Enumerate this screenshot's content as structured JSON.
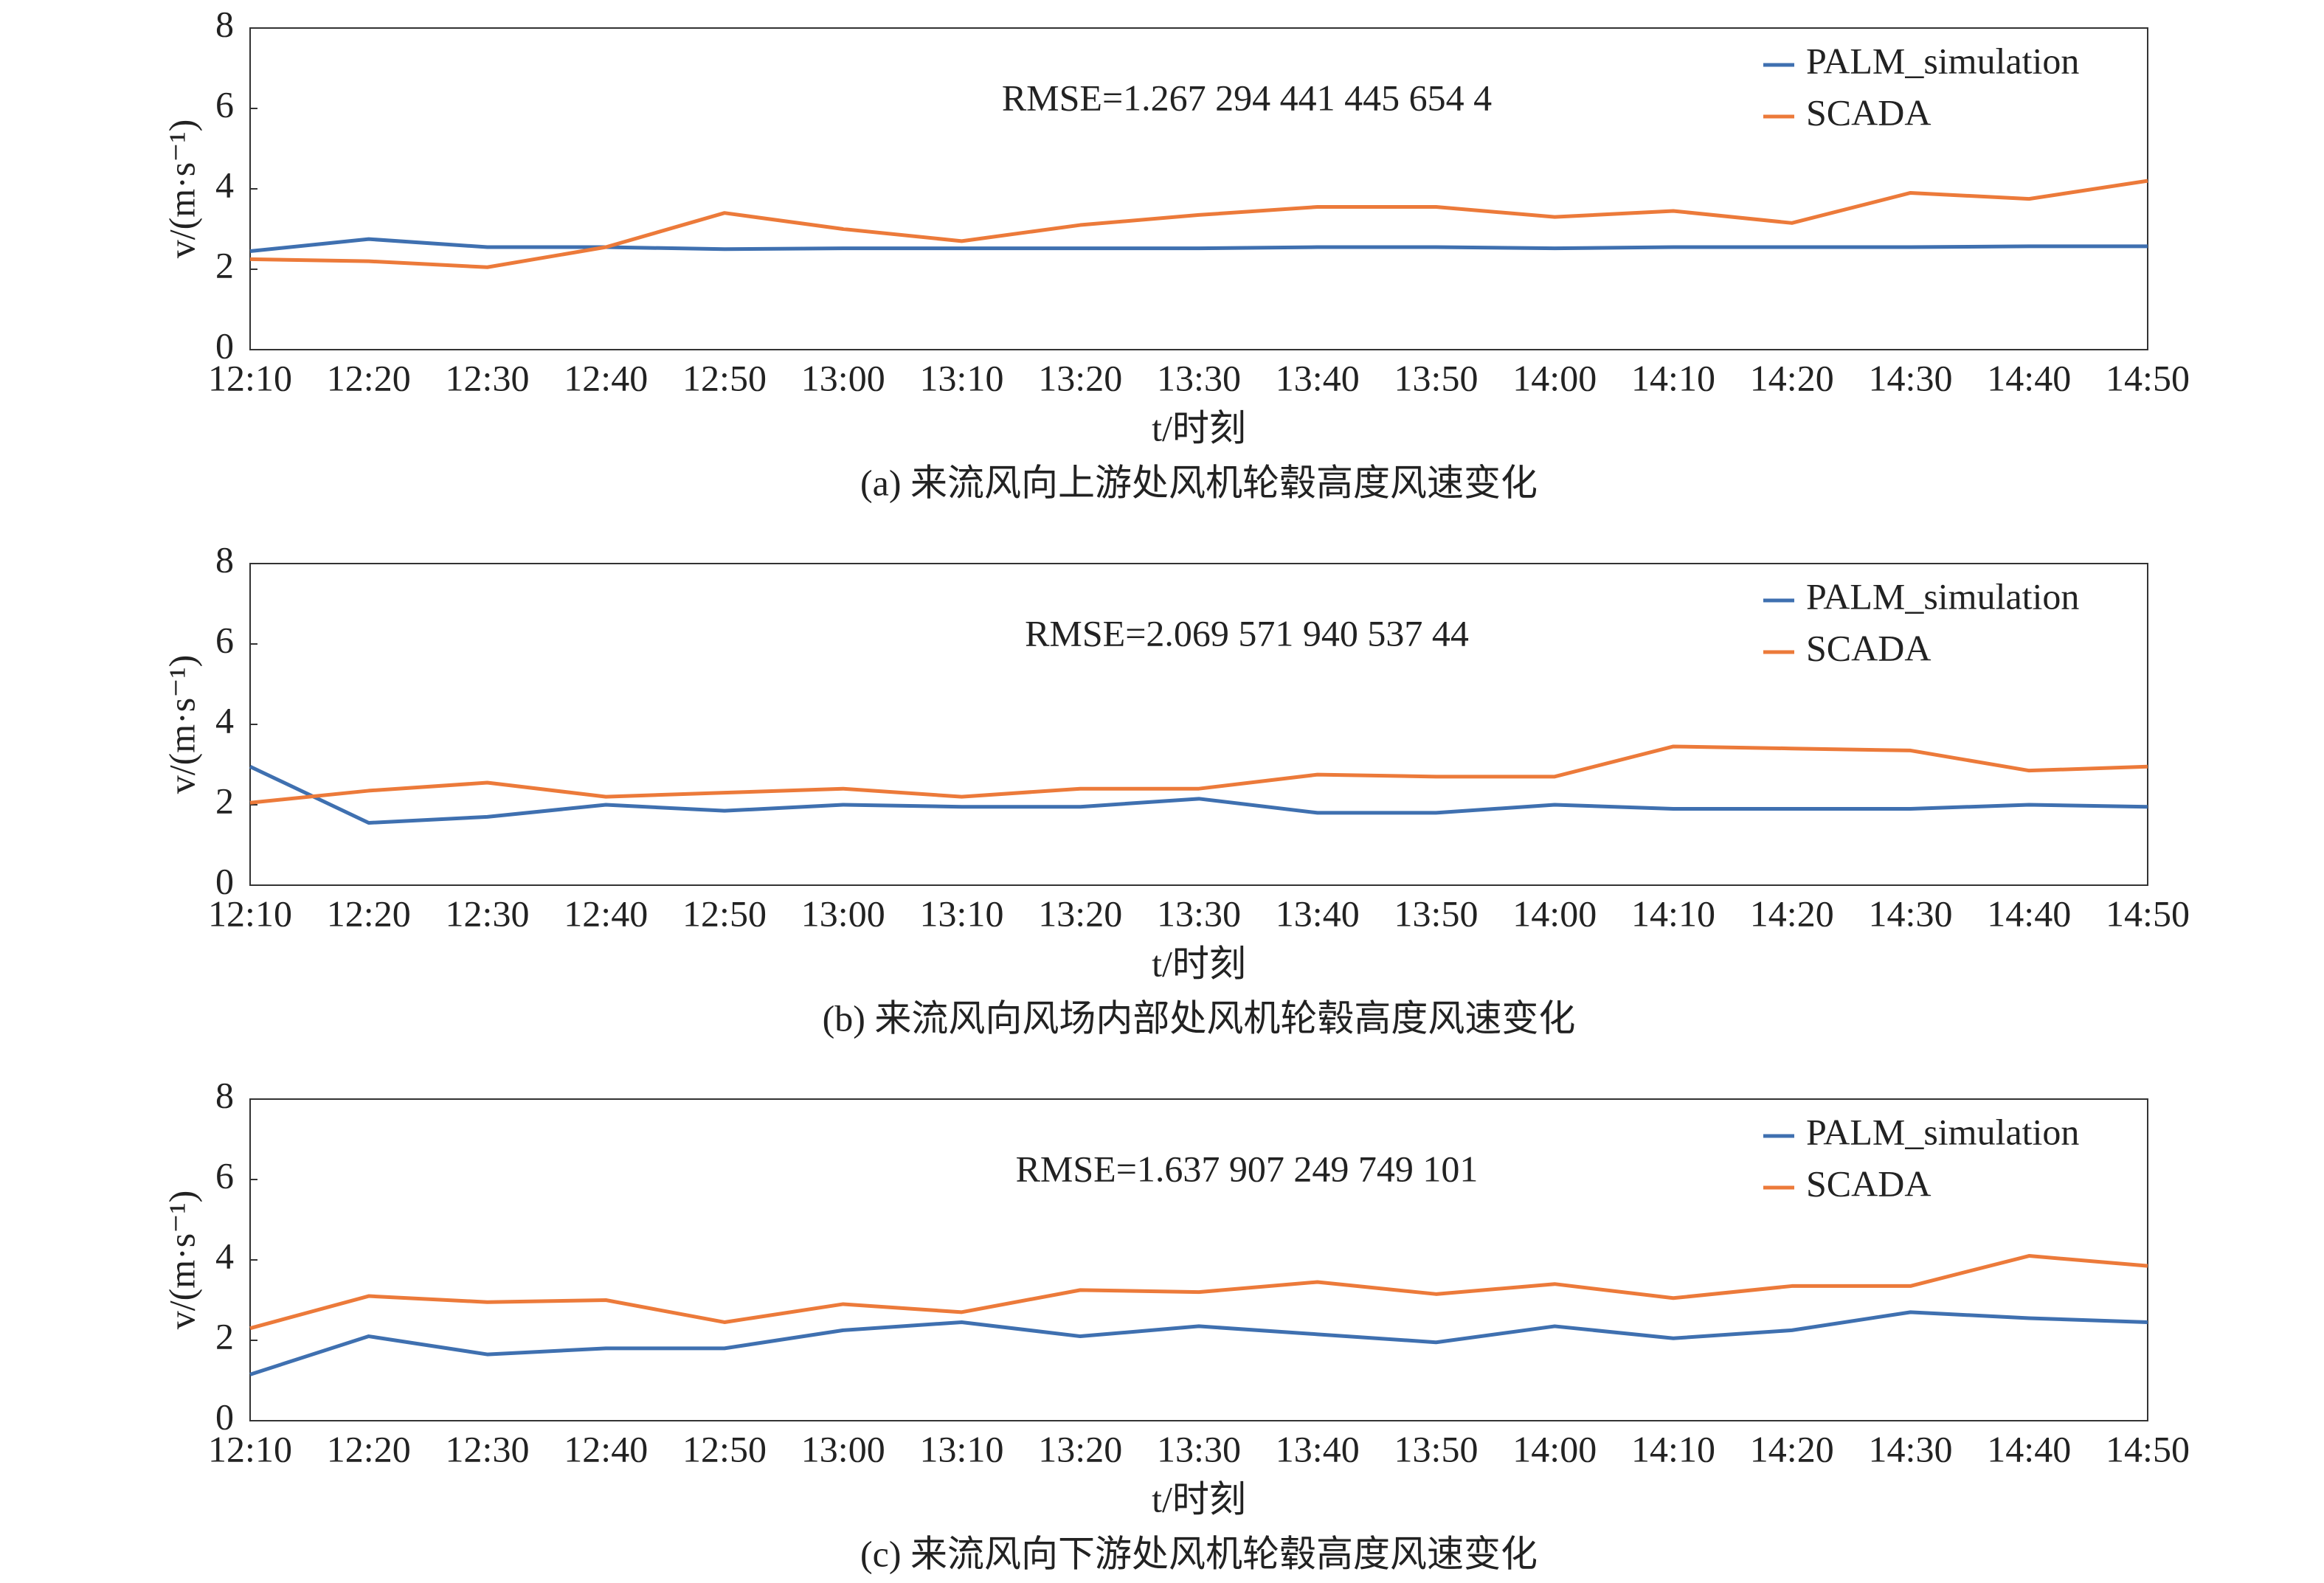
{
  "chart_data": [
    {
      "type": "line",
      "title": "(a) 来流风向上游处风机轮毂高度风速变化",
      "annotation": "RMSE=1.267 294 441 445 654 4",
      "xlabel": "t/时刻",
      "ylabel": "v/(m·s⁻¹)",
      "categories": [
        "12:10",
        "12:20",
        "12:30",
        "12:40",
        "12:50",
        "13:00",
        "13:10",
        "13:20",
        "13:30",
        "13:40",
        "13:50",
        "14:00",
        "14:10",
        "14:20",
        "14:30",
        "14:40",
        "14:50"
      ],
      "series": [
        {
          "name": "PALM_simulation",
          "color": "#3f70b0",
          "values": [
            2.45,
            2.75,
            2.55,
            2.55,
            2.5,
            2.52,
            2.52,
            2.52,
            2.52,
            2.55,
            2.55,
            2.52,
            2.55,
            2.55,
            2.55,
            2.57,
            2.57
          ]
        },
        {
          "name": "SCADA",
          "color": "#ec7a3a",
          "values": [
            2.25,
            2.2,
            2.05,
            2.55,
            3.4,
            3.0,
            2.7,
            3.1,
            3.35,
            3.55,
            3.55,
            3.3,
            3.45,
            3.15,
            3.9,
            3.75,
            4.2
          ]
        }
      ],
      "ylim": [
        0,
        8
      ],
      "yticks": [
        0,
        2,
        4,
        6,
        8
      ],
      "grid": false,
      "legend": "upper right"
    },
    {
      "type": "line",
      "title": "(b) 来流风向风场内部处风机轮毂高度风速变化",
      "annotation": "RMSE=2.069 571 940 537 44",
      "xlabel": "t/时刻",
      "ylabel": "v/(m·s⁻¹)",
      "categories": [
        "12:10",
        "12:20",
        "12:30",
        "12:40",
        "12:50",
        "13:00",
        "13:10",
        "13:20",
        "13:30",
        "13:40",
        "13:50",
        "14:00",
        "14:10",
        "14:20",
        "14:30",
        "14:40",
        "14:50"
      ],
      "series": [
        {
          "name": "PALM_simulation",
          "color": "#3f70b0",
          "values": [
            2.95,
            1.55,
            1.7,
            2.0,
            1.85,
            2.0,
            1.95,
            1.95,
            2.15,
            1.8,
            1.8,
            2.0,
            1.9,
            1.9,
            1.9,
            2.0,
            1.95
          ]
        },
        {
          "name": "SCADA",
          "color": "#ec7a3a",
          "values": [
            2.05,
            2.35,
            2.55,
            2.2,
            2.3,
            2.4,
            2.2,
            2.4,
            2.4,
            2.75,
            2.7,
            2.7,
            3.45,
            3.4,
            3.35,
            2.85,
            2.95
          ]
        }
      ],
      "ylim": [
        0,
        8
      ],
      "yticks": [
        0,
        2,
        4,
        6,
        8
      ],
      "grid": false,
      "legend": "upper right"
    },
    {
      "type": "line",
      "title": "(c) 来流风向下游处风机轮毂高度风速变化",
      "annotation": "RMSE=1.637 907 249 749 101",
      "xlabel": "t/时刻",
      "ylabel": "v/(m·s⁻¹)",
      "categories": [
        "12:10",
        "12:20",
        "12:30",
        "12:40",
        "12:50",
        "13:00",
        "13:10",
        "13:20",
        "13:30",
        "13:40",
        "13:50",
        "14:00",
        "14:10",
        "14:20",
        "14:30",
        "14:40",
        "14:50"
      ],
      "series": [
        {
          "name": "PALM_simulation",
          "color": "#3f70b0",
          "values": [
            1.15,
            2.1,
            1.65,
            1.8,
            1.8,
            2.25,
            2.45,
            2.1,
            2.35,
            2.15,
            1.95,
            2.35,
            2.05,
            2.25,
            2.7,
            2.55,
            2.45
          ]
        },
        {
          "name": "SCADA",
          "color": "#ec7a3a",
          "values": [
            2.3,
            3.1,
            2.95,
            3.0,
            2.45,
            2.9,
            2.7,
            3.25,
            3.2,
            3.45,
            3.15,
            3.4,
            3.05,
            3.35,
            3.35,
            4.1,
            3.85
          ]
        }
      ],
      "ylim": [
        0,
        8
      ],
      "yticks": [
        0,
        2,
        4,
        6,
        8
      ],
      "grid": false,
      "legend": "upper right"
    }
  ]
}
